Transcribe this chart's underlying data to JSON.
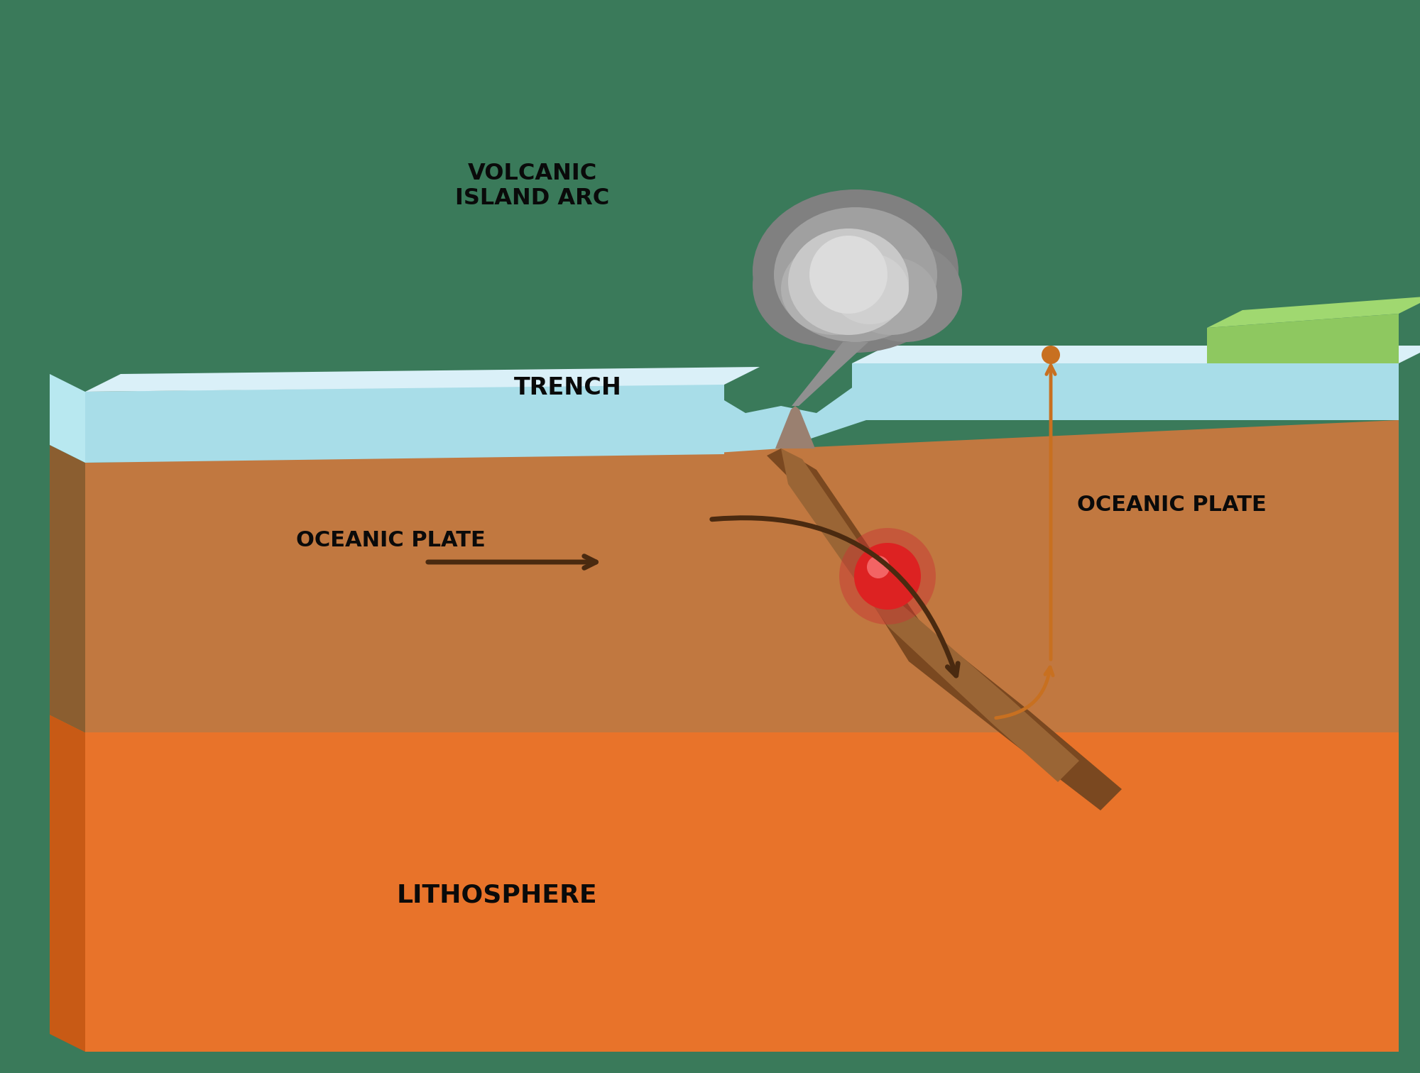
{
  "bg_color": "#3a7a5a",
  "ocean_top_color": "#a8dde8",
  "ocean_light_color": "#c8eef5",
  "ocean_surface_color": "#daf0f8",
  "ocean_edge_color": "#b8e8f0",
  "crust_top_color": "#c17840",
  "crust_dark_color": "#8b5e30",
  "crust_subduct_color": "#9a6535",
  "lithosphere_color": "#e8732a",
  "lithosphere_side_color": "#c85a15",
  "mantle_color": "#7a4820",
  "trench_label": "TRENCH",
  "volcanic_label": "VOLCANIC\nISLAND ARC",
  "oceanic_plate_left_label": "OCEANIC PLATE",
  "oceanic_plate_right_label": "OCEANIC PLATE",
  "lithosphere_label": "LITHOSPHERE",
  "arrow_color": "#4a2a10",
  "magma_arrow_color": "#c87020",
  "label_color": "#0a0a0a",
  "volcano_color": "#9a8070",
  "magma_dot_color": "#dd2222",
  "green_land_color": "#8ec860",
  "green_land_top_color": "#a0d870",
  "smoke_outer": "#808080",
  "smoke_mid": "#a0a0a0",
  "smoke_inner": "#c8c8c8",
  "smoke_center": "#dcdcdc",
  "neck_color": "#909090",
  "trench_label_fs": 24,
  "volcanic_label_fs": 23,
  "plate_label_fs": 22,
  "litho_label_fs": 26
}
